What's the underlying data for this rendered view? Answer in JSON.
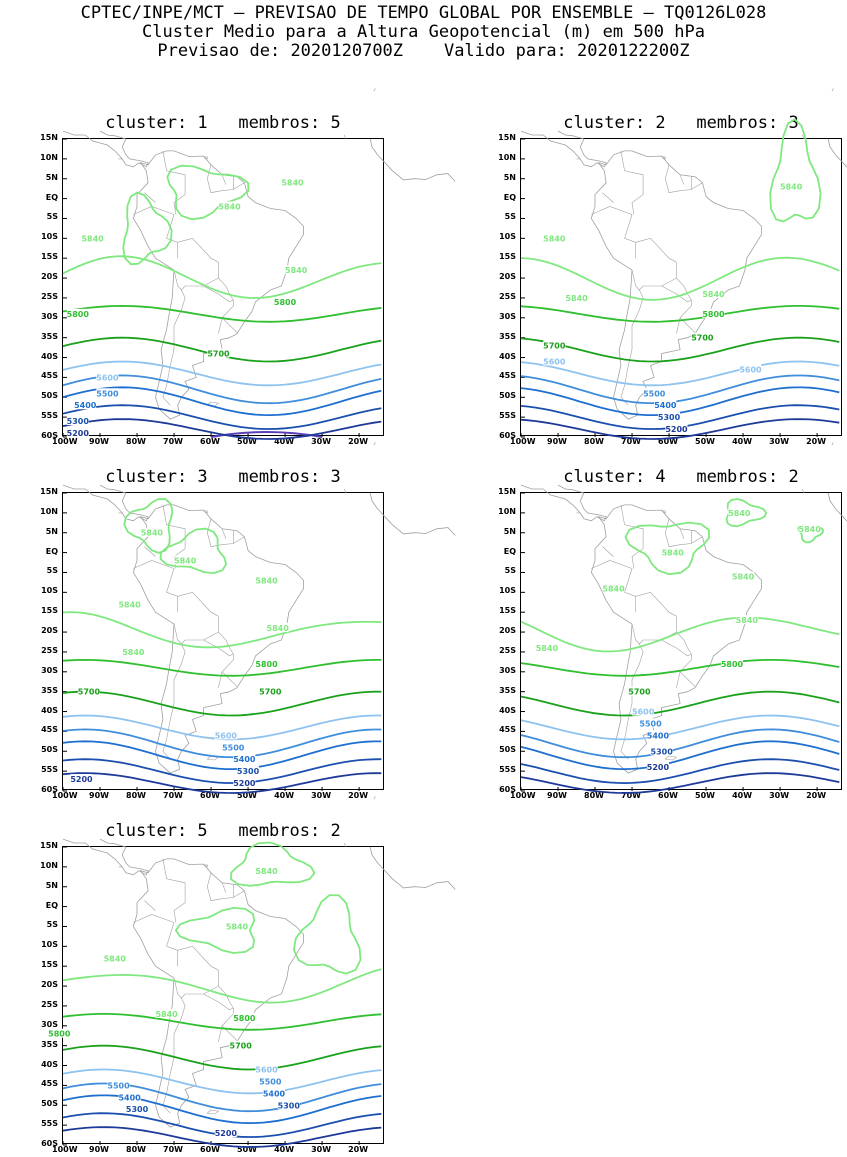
{
  "header": {
    "line1": "CPTEC/INPE/MCT – PREVISAO DE TEMPO GLOBAL POR ENSEMBLE – TQ0126L028",
    "line2": "Cluster Medio para a Altura Geopotencial (m) em 500 hPa",
    "line3": "Previsao de: 2020120700Z    Valido para: 2020122200Z"
  },
  "lat_labels": [
    "15N",
    "10N",
    "5N",
    "EQ",
    "5S",
    "10S",
    "15S",
    "20S",
    "25S",
    "30S",
    "35S",
    "40S",
    "45S",
    "50S",
    "55S",
    "60S"
  ],
  "lon_labels": [
    "100W",
    "90W",
    "80W",
    "70W",
    "60W",
    "50W",
    "40W",
    "30W",
    "20W"
  ],
  "colors": {
    "5840": "#7fe87f",
    "5800": "#2fbf2f",
    "5700": "#1aa11a",
    "5600": "#8ec3ef",
    "5500": "#3f8ddb",
    "5400": "#1e6fcf",
    "5300": "#1a4fae",
    "5200": "#1d3a99",
    "land": "#a0a0a0"
  },
  "panels": [
    {
      "title": "cluster: 1   membros: 5",
      "labels": [
        {
          "text": "5840",
          "lon": -38,
          "lat": 4
        },
        {
          "text": "5840",
          "lon": -55,
          "lat": -2
        },
        {
          "text": "5840",
          "lon": -92,
          "lat": -10
        },
        {
          "text": "5840",
          "lon": -37,
          "lat": -18
        },
        {
          "text": "5800",
          "lon": -96,
          "lat": -29
        },
        {
          "text": "5800",
          "lon": -40,
          "lat": -26
        },
        {
          "text": "5700",
          "lon": -58,
          "lat": -39
        },
        {
          "text": "5600",
          "lon": -88,
          "lat": -45
        },
        {
          "text": "5500",
          "lon": -88,
          "lat": -49
        },
        {
          "text": "5400",
          "lon": -94,
          "lat": -52
        },
        {
          "text": "5300",
          "lon": -96,
          "lat": -56
        },
        {
          "text": "5200",
          "lon": -96,
          "lat": -59
        }
      ]
    },
    {
      "title": "cluster: 2   membros: 3",
      "labels": [
        {
          "text": "5840",
          "lon": -91,
          "lat": -10
        },
        {
          "text": "5840",
          "lon": -27,
          "lat": 3
        },
        {
          "text": "5840",
          "lon": -85,
          "lat": -25
        },
        {
          "text": "5840",
          "lon": -48,
          "lat": -24
        },
        {
          "text": "5800",
          "lon": -48,
          "lat": -29
        },
        {
          "text": "5700",
          "lon": -91,
          "lat": -37
        },
        {
          "text": "5700",
          "lon": -51,
          "lat": -35
        },
        {
          "text": "5600",
          "lon": -91,
          "lat": -41
        },
        {
          "text": "5600",
          "lon": -38,
          "lat": -43
        },
        {
          "text": "5500",
          "lon": -64,
          "lat": -49
        },
        {
          "text": "5400",
          "lon": -61,
          "lat": -52
        },
        {
          "text": "5300",
          "lon": -60,
          "lat": -55
        },
        {
          "text": "5200",
          "lon": -58,
          "lat": -58
        }
      ]
    },
    {
      "title": "cluster: 3   membros: 3",
      "labels": [
        {
          "text": "5840",
          "lon": -76,
          "lat": 5
        },
        {
          "text": "5840",
          "lon": -67,
          "lat": -2
        },
        {
          "text": "5840",
          "lon": -45,
          "lat": -7
        },
        {
          "text": "5840",
          "lon": -82,
          "lat": -13
        },
        {
          "text": "5840",
          "lon": -42,
          "lat": -19
        },
        {
          "text": "5840",
          "lon": -81,
          "lat": -25
        },
        {
          "text": "5800",
          "lon": -45,
          "lat": -28
        },
        {
          "text": "5700",
          "lon": -93,
          "lat": -35
        },
        {
          "text": "5700",
          "lon": -44,
          "lat": -35
        },
        {
          "text": "5600",
          "lon": -56,
          "lat": -46
        },
        {
          "text": "5500",
          "lon": -54,
          "lat": -49
        },
        {
          "text": "5400",
          "lon": -51,
          "lat": -52
        },
        {
          "text": "5300",
          "lon": -50,
          "lat": -55
        },
        {
          "text": "5200",
          "lon": -95,
          "lat": -57
        },
        {
          "text": "5200",
          "lon": -51,
          "lat": -58
        }
      ]
    },
    {
      "title": "cluster: 4   membros: 2",
      "labels": [
        {
          "text": "5840",
          "lon": -41,
          "lat": 10
        },
        {
          "text": "5840",
          "lon": -22,
          "lat": 6
        },
        {
          "text": "5840",
          "lon": -59,
          "lat": 0
        },
        {
          "text": "5840",
          "lon": -40,
          "lat": -6
        },
        {
          "text": "5840",
          "lon": -75,
          "lat": -9
        },
        {
          "text": "5840",
          "lon": -39,
          "lat": -17
        },
        {
          "text": "5840",
          "lon": -93,
          "lat": -24
        },
        {
          "text": "5800",
          "lon": -43,
          "lat": -28
        },
        {
          "text": "5700",
          "lon": -68,
          "lat": -35
        },
        {
          "text": "5600",
          "lon": -67,
          "lat": -40
        },
        {
          "text": "5500",
          "lon": -65,
          "lat": -43
        },
        {
          "text": "5400",
          "lon": -63,
          "lat": -46
        },
        {
          "text": "5300",
          "lon": -62,
          "lat": -50
        },
        {
          "text": "5200",
          "lon": -63,
          "lat": -54
        }
      ]
    },
    {
      "title": "cluster: 5   membros: 2",
      "labels": [
        {
          "text": "5840",
          "lon": -45,
          "lat": 9
        },
        {
          "text": "5840",
          "lon": -53,
          "lat": -5
        },
        {
          "text": "5840",
          "lon": -86,
          "lat": -13
        },
        {
          "text": "5840",
          "lon": -72,
          "lat": -27
        },
        {
          "text": "5800",
          "lon": -51,
          "lat": -28
        },
        {
          "text": "5800",
          "lon": -101,
          "lat": -32
        },
        {
          "text": "5700",
          "lon": -52,
          "lat": -35
        },
        {
          "text": "5600",
          "lon": -45,
          "lat": -41
        },
        {
          "text": "5500",
          "lon": -44,
          "lat": -44
        },
        {
          "text": "5500",
          "lon": -85,
          "lat": -45
        },
        {
          "text": "5400",
          "lon": -43,
          "lat": -47
        },
        {
          "text": "5400",
          "lon": -82,
          "lat": -48
        },
        {
          "text": "5300",
          "lon": -39,
          "lat": -50
        },
        {
          "text": "5300",
          "lon": -80,
          "lat": -51
        },
        {
          "text": "5200",
          "lon": -56,
          "lat": -57
        }
      ]
    }
  ]
}
